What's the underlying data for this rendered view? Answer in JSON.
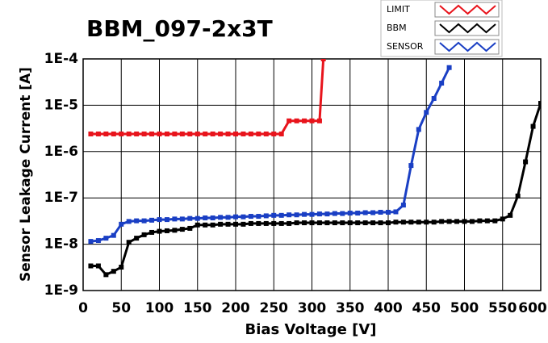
{
  "chart_data": {
    "type": "line",
    "title": "BBM_097-2x3T",
    "x_label": "Bias Voltage [V]",
    "y_label": "Sensor Leakage Current [A]",
    "yscale": "log",
    "grid": true,
    "xlim": [
      0,
      600
    ],
    "xticks": [
      0,
      50,
      100,
      150,
      200,
      250,
      300,
      350,
      400,
      450,
      500,
      550,
      600
    ],
    "ylim": [
      1e-09,
      0.0001
    ],
    "yticks": [
      {
        "value": 1e-09,
        "label": "1E-9"
      },
      {
        "value": 1e-08,
        "label": "1E-8"
      },
      {
        "value": 1e-07,
        "label": "1E-7"
      },
      {
        "value": 1e-06,
        "label": "1E-6"
      },
      {
        "value": 1e-05,
        "label": "1E-5"
      },
      {
        "value": 0.0001,
        "label": "1E-4"
      }
    ],
    "series": [
      {
        "name": "LIMIT",
        "color": "#e8141c",
        "x": [
          10,
          20,
          30,
          40,
          50,
          60,
          70,
          80,
          90,
          100,
          110,
          120,
          130,
          140,
          150,
          160,
          170,
          180,
          190,
          200,
          210,
          220,
          230,
          240,
          250,
          260,
          270,
          280,
          290,
          300,
          310,
          315
        ],
        "values": [
          2.4e-06,
          2.4e-06,
          2.4e-06,
          2.4e-06,
          2.4e-06,
          2.4e-06,
          2.4e-06,
          2.4e-06,
          2.4e-06,
          2.4e-06,
          2.4e-06,
          2.4e-06,
          2.4e-06,
          2.4e-06,
          2.4e-06,
          2.4e-06,
          2.4e-06,
          2.4e-06,
          2.4e-06,
          2.4e-06,
          2.4e-06,
          2.4e-06,
          2.4e-06,
          2.4e-06,
          2.4e-06,
          2.4e-06,
          4.6e-06,
          4.6e-06,
          4.6e-06,
          4.6e-06,
          4.6e-06,
          0.0001
        ]
      },
      {
        "name": "BBM",
        "color": "#000000",
        "x": [
          10,
          20,
          30,
          40,
          50,
          60,
          70,
          80,
          90,
          100,
          110,
          120,
          130,
          140,
          150,
          160,
          170,
          180,
          190,
          200,
          210,
          220,
          230,
          240,
          250,
          260,
          270,
          280,
          290,
          300,
          310,
          320,
          330,
          340,
          350,
          360,
          370,
          380,
          390,
          400,
          410,
          420,
          430,
          440,
          450,
          460,
          470,
          480,
          490,
          500,
          510,
          520,
          530,
          540,
          550,
          560,
          570,
          580,
          590,
          600
        ],
        "values": [
          3.4e-09,
          3.4e-09,
          2.2e-09,
          2.6e-09,
          3.2e-09,
          1.1e-08,
          1.35e-08,
          1.6e-08,
          1.8e-08,
          1.9e-08,
          1.95e-08,
          2e-08,
          2.1e-08,
          2.2e-08,
          2.6e-08,
          2.6e-08,
          2.6e-08,
          2.7e-08,
          2.7e-08,
          2.7e-08,
          2.7e-08,
          2.8e-08,
          2.8e-08,
          2.8e-08,
          2.8e-08,
          2.8e-08,
          2.8e-08,
          2.9e-08,
          2.9e-08,
          2.9e-08,
          2.9e-08,
          2.9e-08,
          2.9e-08,
          2.9e-08,
          2.9e-08,
          2.9e-08,
          2.9e-08,
          2.9e-08,
          2.9e-08,
          2.9e-08,
          3e-08,
          3e-08,
          3e-08,
          3e-08,
          3e-08,
          3e-08,
          3.1e-08,
          3.1e-08,
          3.1e-08,
          3.1e-08,
          3.1e-08,
          3.2e-08,
          3.2e-08,
          3.2e-08,
          3.5e-08,
          4.2e-08,
          1.1e-07,
          6e-07,
          3.5e-06,
          1.1e-05
        ]
      },
      {
        "name": "SENSOR",
        "color": "#1a3fc4",
        "x": [
          10,
          20,
          30,
          40,
          50,
          60,
          70,
          80,
          90,
          100,
          110,
          120,
          130,
          140,
          150,
          160,
          170,
          180,
          190,
          200,
          210,
          220,
          230,
          240,
          250,
          260,
          270,
          280,
          290,
          300,
          310,
          320,
          330,
          340,
          350,
          360,
          370,
          380,
          390,
          400,
          410,
          420,
          430,
          440,
          450,
          460,
          470,
          480
        ],
        "values": [
          1.15e-08,
          1.2e-08,
          1.35e-08,
          1.55e-08,
          2.7e-08,
          3.1e-08,
          3.2e-08,
          3.2e-08,
          3.3e-08,
          3.4e-08,
          3.4e-08,
          3.5e-08,
          3.5e-08,
          3.6e-08,
          3.6e-08,
          3.7e-08,
          3.7e-08,
          3.8e-08,
          3.8e-08,
          3.9e-08,
          3.9e-08,
          4e-08,
          4e-08,
          4.1e-08,
          4.2e-08,
          4.2e-08,
          4.3e-08,
          4.3e-08,
          4.4e-08,
          4.4e-08,
          4.5e-08,
          4.5e-08,
          4.6e-08,
          4.6e-08,
          4.7e-08,
          4.7e-08,
          4.8e-08,
          4.8e-08,
          4.9e-08,
          4.9e-08,
          5e-08,
          7e-08,
          5e-07,
          3e-06,
          7e-06,
          1.4e-05,
          3e-05,
          6.5e-05
        ]
      }
    ]
  }
}
